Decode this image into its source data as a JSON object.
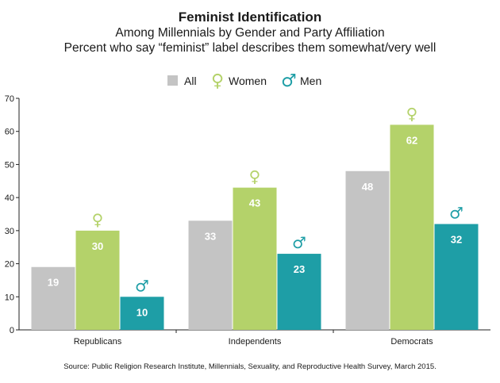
{
  "title": "Feminist Identification",
  "subtitle_1": "Among Millennials by Gender and Party Affiliation",
  "subtitle_2": "Percent who say “feminist” label describes them somewhat/very well",
  "source": "Source: Public Religion Research Institute, Millennials, Sexuality, and Reproductive Health Survey, March 2015.",
  "colors": {
    "All": "#c4c4c4",
    "Women": "#b4d26a",
    "Men": "#1e9ea6"
  },
  "chart_data": {
    "type": "bar",
    "categories": [
      "Republicans",
      "Independents",
      "Democrats"
    ],
    "series": [
      {
        "name": "All",
        "values": [
          19,
          33,
          48
        ],
        "icon": ""
      },
      {
        "name": "Women",
        "values": [
          30,
          43,
          62
        ],
        "icon": "♀"
      },
      {
        "name": "Men",
        "values": [
          10,
          23,
          32
        ],
        "icon": "♂"
      }
    ],
    "ylim": [
      0,
      70
    ],
    "yticks": [
      0,
      10,
      20,
      30,
      40,
      50,
      60,
      70
    ],
    "legend_position": "top-center",
    "grid": false
  }
}
